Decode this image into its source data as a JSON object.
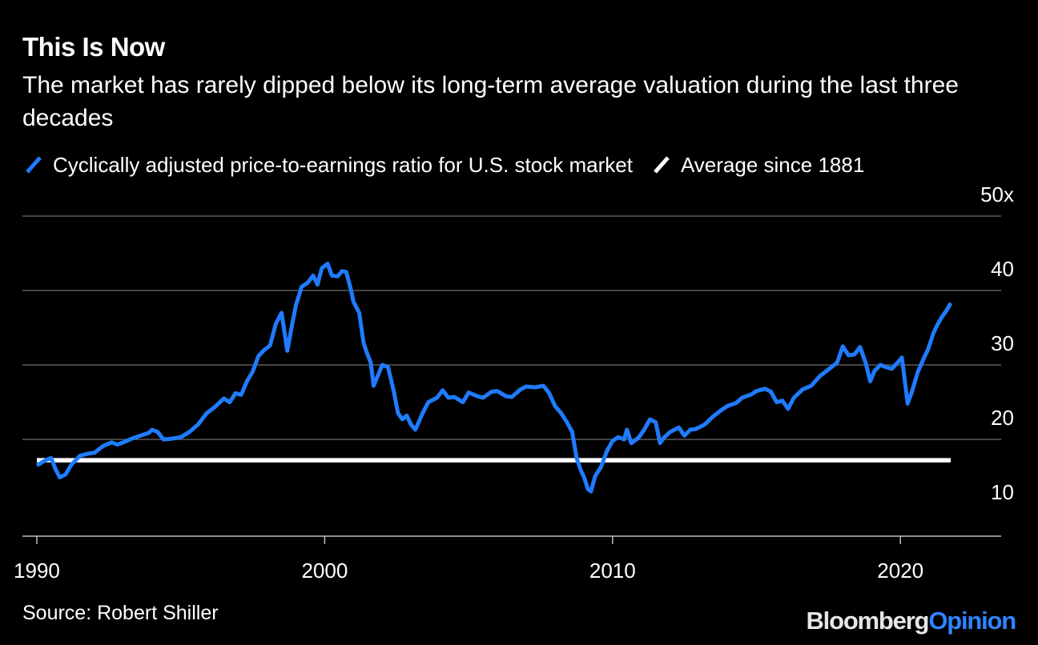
{
  "title": "This Is Now",
  "subtitle": "The market has rarely dipped below its long-term average valuation during the last three decades",
  "legend": {
    "cape_label": "Cyclically adjusted price-to-earnings ratio for U.S. stock market",
    "avg_label": "Average since 1881"
  },
  "source": "Source: Robert Shiller",
  "brand": {
    "part1": "Bloomberg",
    "part2": "Opinion"
  },
  "colors": {
    "cape": "#1f7bff",
    "average": "#ffffff",
    "grid": "#5a5a5a",
    "background": "#000000"
  },
  "chart_data": {
    "type": "line",
    "title": "This Is Now",
    "xlabel": "",
    "ylabel": "",
    "xlim": [
      1989.5,
      2023.5
    ],
    "ylim": [
      7,
      50
    ],
    "y_ticks": [
      10,
      20,
      30,
      40,
      50
    ],
    "y_tick_labels": [
      "10",
      "20",
      "30",
      "40",
      "50x"
    ],
    "x_ticks": [
      1990,
      2000,
      2010,
      2020
    ],
    "x_tick_labels": [
      "1990",
      "2000",
      "2010",
      "2020"
    ],
    "grid": true,
    "legend_position": "top-left",
    "series": [
      {
        "name": "Cyclically adjusted price-to-earnings ratio for U.S. stock market",
        "color": "#1f7bff",
        "points": [
          [
            1990.0,
            16.5
          ],
          [
            1990.3,
            17.2
          ],
          [
            1990.5,
            17.5
          ],
          [
            1990.65,
            16.0
          ],
          [
            1990.8,
            14.9
          ],
          [
            1991.0,
            15.3
          ],
          [
            1991.2,
            16.6
          ],
          [
            1991.5,
            17.8
          ],
          [
            1991.8,
            18.1
          ],
          [
            1992.0,
            18.2
          ],
          [
            1992.3,
            19.1
          ],
          [
            1992.6,
            19.6
          ],
          [
            1992.8,
            19.3
          ],
          [
            1993.0,
            19.6
          ],
          [
            1993.3,
            20.1
          ],
          [
            1993.6,
            20.5
          ],
          [
            1993.9,
            20.9
          ],
          [
            1994.0,
            21.3
          ],
          [
            1994.2,
            21.0
          ],
          [
            1994.4,
            20.0
          ],
          [
            1994.7,
            20.1
          ],
          [
            1995.0,
            20.3
          ],
          [
            1995.3,
            21.0
          ],
          [
            1995.6,
            22.0
          ],
          [
            1995.9,
            23.5
          ],
          [
            1996.2,
            24.4
          ],
          [
            1996.5,
            25.5
          ],
          [
            1996.7,
            25.0
          ],
          [
            1996.9,
            26.2
          ],
          [
            1997.1,
            26.0
          ],
          [
            1997.3,
            27.8
          ],
          [
            1997.5,
            29.1
          ],
          [
            1997.7,
            31.2
          ],
          [
            1997.9,
            32.0
          ],
          [
            1998.1,
            32.6
          ],
          [
            1998.3,
            35.5
          ],
          [
            1998.5,
            37.0
          ],
          [
            1998.6,
            34.5
          ],
          [
            1998.7,
            31.9
          ],
          [
            1998.85,
            35.0
          ],
          [
            1999.0,
            38.0
          ],
          [
            1999.2,
            40.5
          ],
          [
            1999.4,
            41.0
          ],
          [
            1999.6,
            42.0
          ],
          [
            1999.75,
            40.8
          ],
          [
            1999.9,
            43.0
          ],
          [
            2000.1,
            43.6
          ],
          [
            2000.25,
            42.0
          ],
          [
            2000.45,
            41.9
          ],
          [
            2000.6,
            42.6
          ],
          [
            2000.75,
            42.5
          ],
          [
            2000.9,
            40.3
          ],
          [
            2001.0,
            38.5
          ],
          [
            2001.2,
            37.0
          ],
          [
            2001.35,
            33.0
          ],
          [
            2001.45,
            31.8
          ],
          [
            2001.6,
            30.3
          ],
          [
            2001.7,
            27.2
          ],
          [
            2001.85,
            28.6
          ],
          [
            2002.0,
            30.0
          ],
          [
            2002.2,
            29.7
          ],
          [
            2002.4,
            26.5
          ],
          [
            2002.55,
            23.5
          ],
          [
            2002.7,
            22.7
          ],
          [
            2002.85,
            23.2
          ],
          [
            2003.0,
            22.0
          ],
          [
            2003.15,
            21.3
          ],
          [
            2003.4,
            23.5
          ],
          [
            2003.6,
            25.0
          ],
          [
            2003.9,
            25.6
          ],
          [
            2004.1,
            26.6
          ],
          [
            2004.3,
            25.6
          ],
          [
            2004.5,
            25.7
          ],
          [
            2004.8,
            25.0
          ],
          [
            2005.0,
            26.3
          ],
          [
            2005.3,
            25.8
          ],
          [
            2005.5,
            25.6
          ],
          [
            2005.8,
            26.4
          ],
          [
            2006.0,
            26.5
          ],
          [
            2006.3,
            25.8
          ],
          [
            2006.5,
            25.7
          ],
          [
            2006.8,
            26.7
          ],
          [
            2007.0,
            27.1
          ],
          [
            2007.3,
            27.0
          ],
          [
            2007.6,
            27.2
          ],
          [
            2007.8,
            26.2
          ],
          [
            2008.0,
            24.5
          ],
          [
            2008.2,
            23.6
          ],
          [
            2008.4,
            22.4
          ],
          [
            2008.6,
            21.0
          ],
          [
            2008.75,
            17.5
          ],
          [
            2008.9,
            15.8
          ],
          [
            2009.0,
            15.0
          ],
          [
            2009.15,
            13.3
          ],
          [
            2009.25,
            13.0
          ],
          [
            2009.4,
            15.1
          ],
          [
            2009.6,
            16.3
          ],
          [
            2009.8,
            18.4
          ],
          [
            2010.0,
            19.8
          ],
          [
            2010.2,
            20.3
          ],
          [
            2010.4,
            20.0
          ],
          [
            2010.5,
            21.3
          ],
          [
            2010.65,
            19.5
          ],
          [
            2010.9,
            20.2
          ],
          [
            2011.1,
            21.3
          ],
          [
            2011.3,
            22.7
          ],
          [
            2011.5,
            22.3
          ],
          [
            2011.65,
            19.5
          ],
          [
            2011.8,
            20.3
          ],
          [
            2012.0,
            21.0
          ],
          [
            2012.3,
            21.6
          ],
          [
            2012.5,
            20.5
          ],
          [
            2012.7,
            21.3
          ],
          [
            2012.9,
            21.4
          ],
          [
            2013.2,
            22.0
          ],
          [
            2013.5,
            23.1
          ],
          [
            2013.8,
            24.0
          ],
          [
            2014.0,
            24.5
          ],
          [
            2014.3,
            24.9
          ],
          [
            2014.5,
            25.6
          ],
          [
            2014.8,
            26.0
          ],
          [
            2015.0,
            26.5
          ],
          [
            2015.3,
            26.8
          ],
          [
            2015.5,
            26.4
          ],
          [
            2015.7,
            25.0
          ],
          [
            2015.9,
            25.2
          ],
          [
            2016.1,
            24.1
          ],
          [
            2016.3,
            25.6
          ],
          [
            2016.6,
            26.7
          ],
          [
            2016.9,
            27.2
          ],
          [
            2017.2,
            28.5
          ],
          [
            2017.5,
            29.4
          ],
          [
            2017.8,
            30.3
          ],
          [
            2018.0,
            32.5
          ],
          [
            2018.2,
            31.3
          ],
          [
            2018.4,
            31.4
          ],
          [
            2018.6,
            32.4
          ],
          [
            2018.8,
            30.2
          ],
          [
            2018.95,
            27.8
          ],
          [
            2019.1,
            29.2
          ],
          [
            2019.3,
            30.0
          ],
          [
            2019.5,
            29.7
          ],
          [
            2019.7,
            29.5
          ],
          [
            2019.9,
            30.3
          ],
          [
            2020.05,
            31.0
          ],
          [
            2020.15,
            28.0
          ],
          [
            2020.25,
            24.8
          ],
          [
            2020.4,
            26.4
          ],
          [
            2020.6,
            29.0
          ],
          [
            2020.8,
            30.8
          ],
          [
            2020.95,
            32.0
          ],
          [
            2021.15,
            34.3
          ],
          [
            2021.3,
            35.5
          ],
          [
            2021.45,
            36.5
          ],
          [
            2021.6,
            37.3
          ],
          [
            2021.75,
            38.3
          ]
        ]
      },
      {
        "name": "Average since 1881",
        "color": "#ffffff",
        "points": [
          [
            1990.0,
            17.2
          ],
          [
            2021.75,
            17.2
          ]
        ]
      }
    ]
  }
}
